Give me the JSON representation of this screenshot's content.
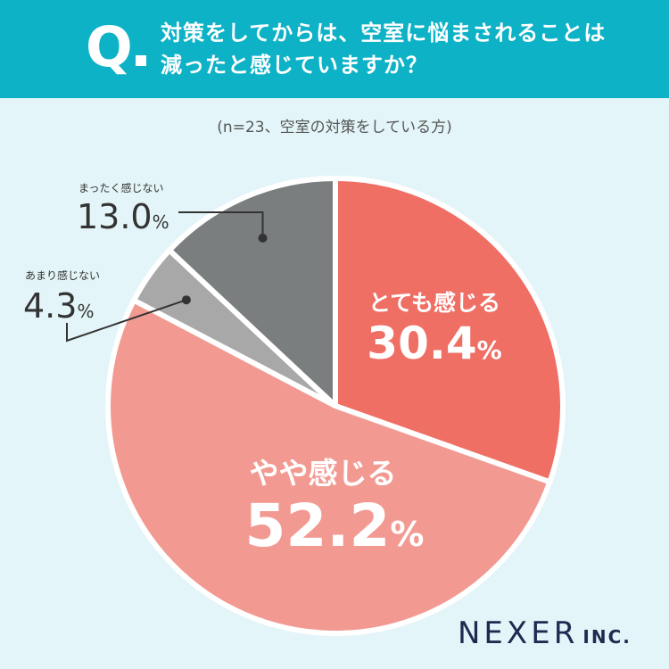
{
  "header": {
    "q_mark": "Q",
    "question_line1": "対策をしてからは、空室に悩まされることは",
    "question_line2": "減ったと感じていますか？"
  },
  "subtitle": "(n=23、空室の対策をしている方)",
  "chart_data": {
    "type": "pie",
    "title": "対策をしてからは、空室に悩まされることは減ったと感じていますか？",
    "subtitle": "(n=23、空室の対策をしている方)",
    "unit": "%",
    "start_angle_deg": 0,
    "direction": "clockwise",
    "slices": [
      {
        "label": "とても感じる",
        "value": 30.4,
        "value_text": "30.4",
        "color": "#ef6f64",
        "label_placement": "inside"
      },
      {
        "label": "やや感じる",
        "value": 52.2,
        "value_text": "52.2",
        "color": "#f29a92",
        "label_placement": "inside"
      },
      {
        "label": "あまり感じない",
        "value": 4.3,
        "value_text": "4.3",
        "color": "#a8a8a8",
        "label_placement": "callout"
      },
      {
        "label": "まったく感じない",
        "value": 13.0,
        "value_text": "13.0",
        "color": "#7b7e7f",
        "label_placement": "callout"
      }
    ]
  },
  "brand": {
    "big": "NEXER",
    "small": "INC."
  }
}
